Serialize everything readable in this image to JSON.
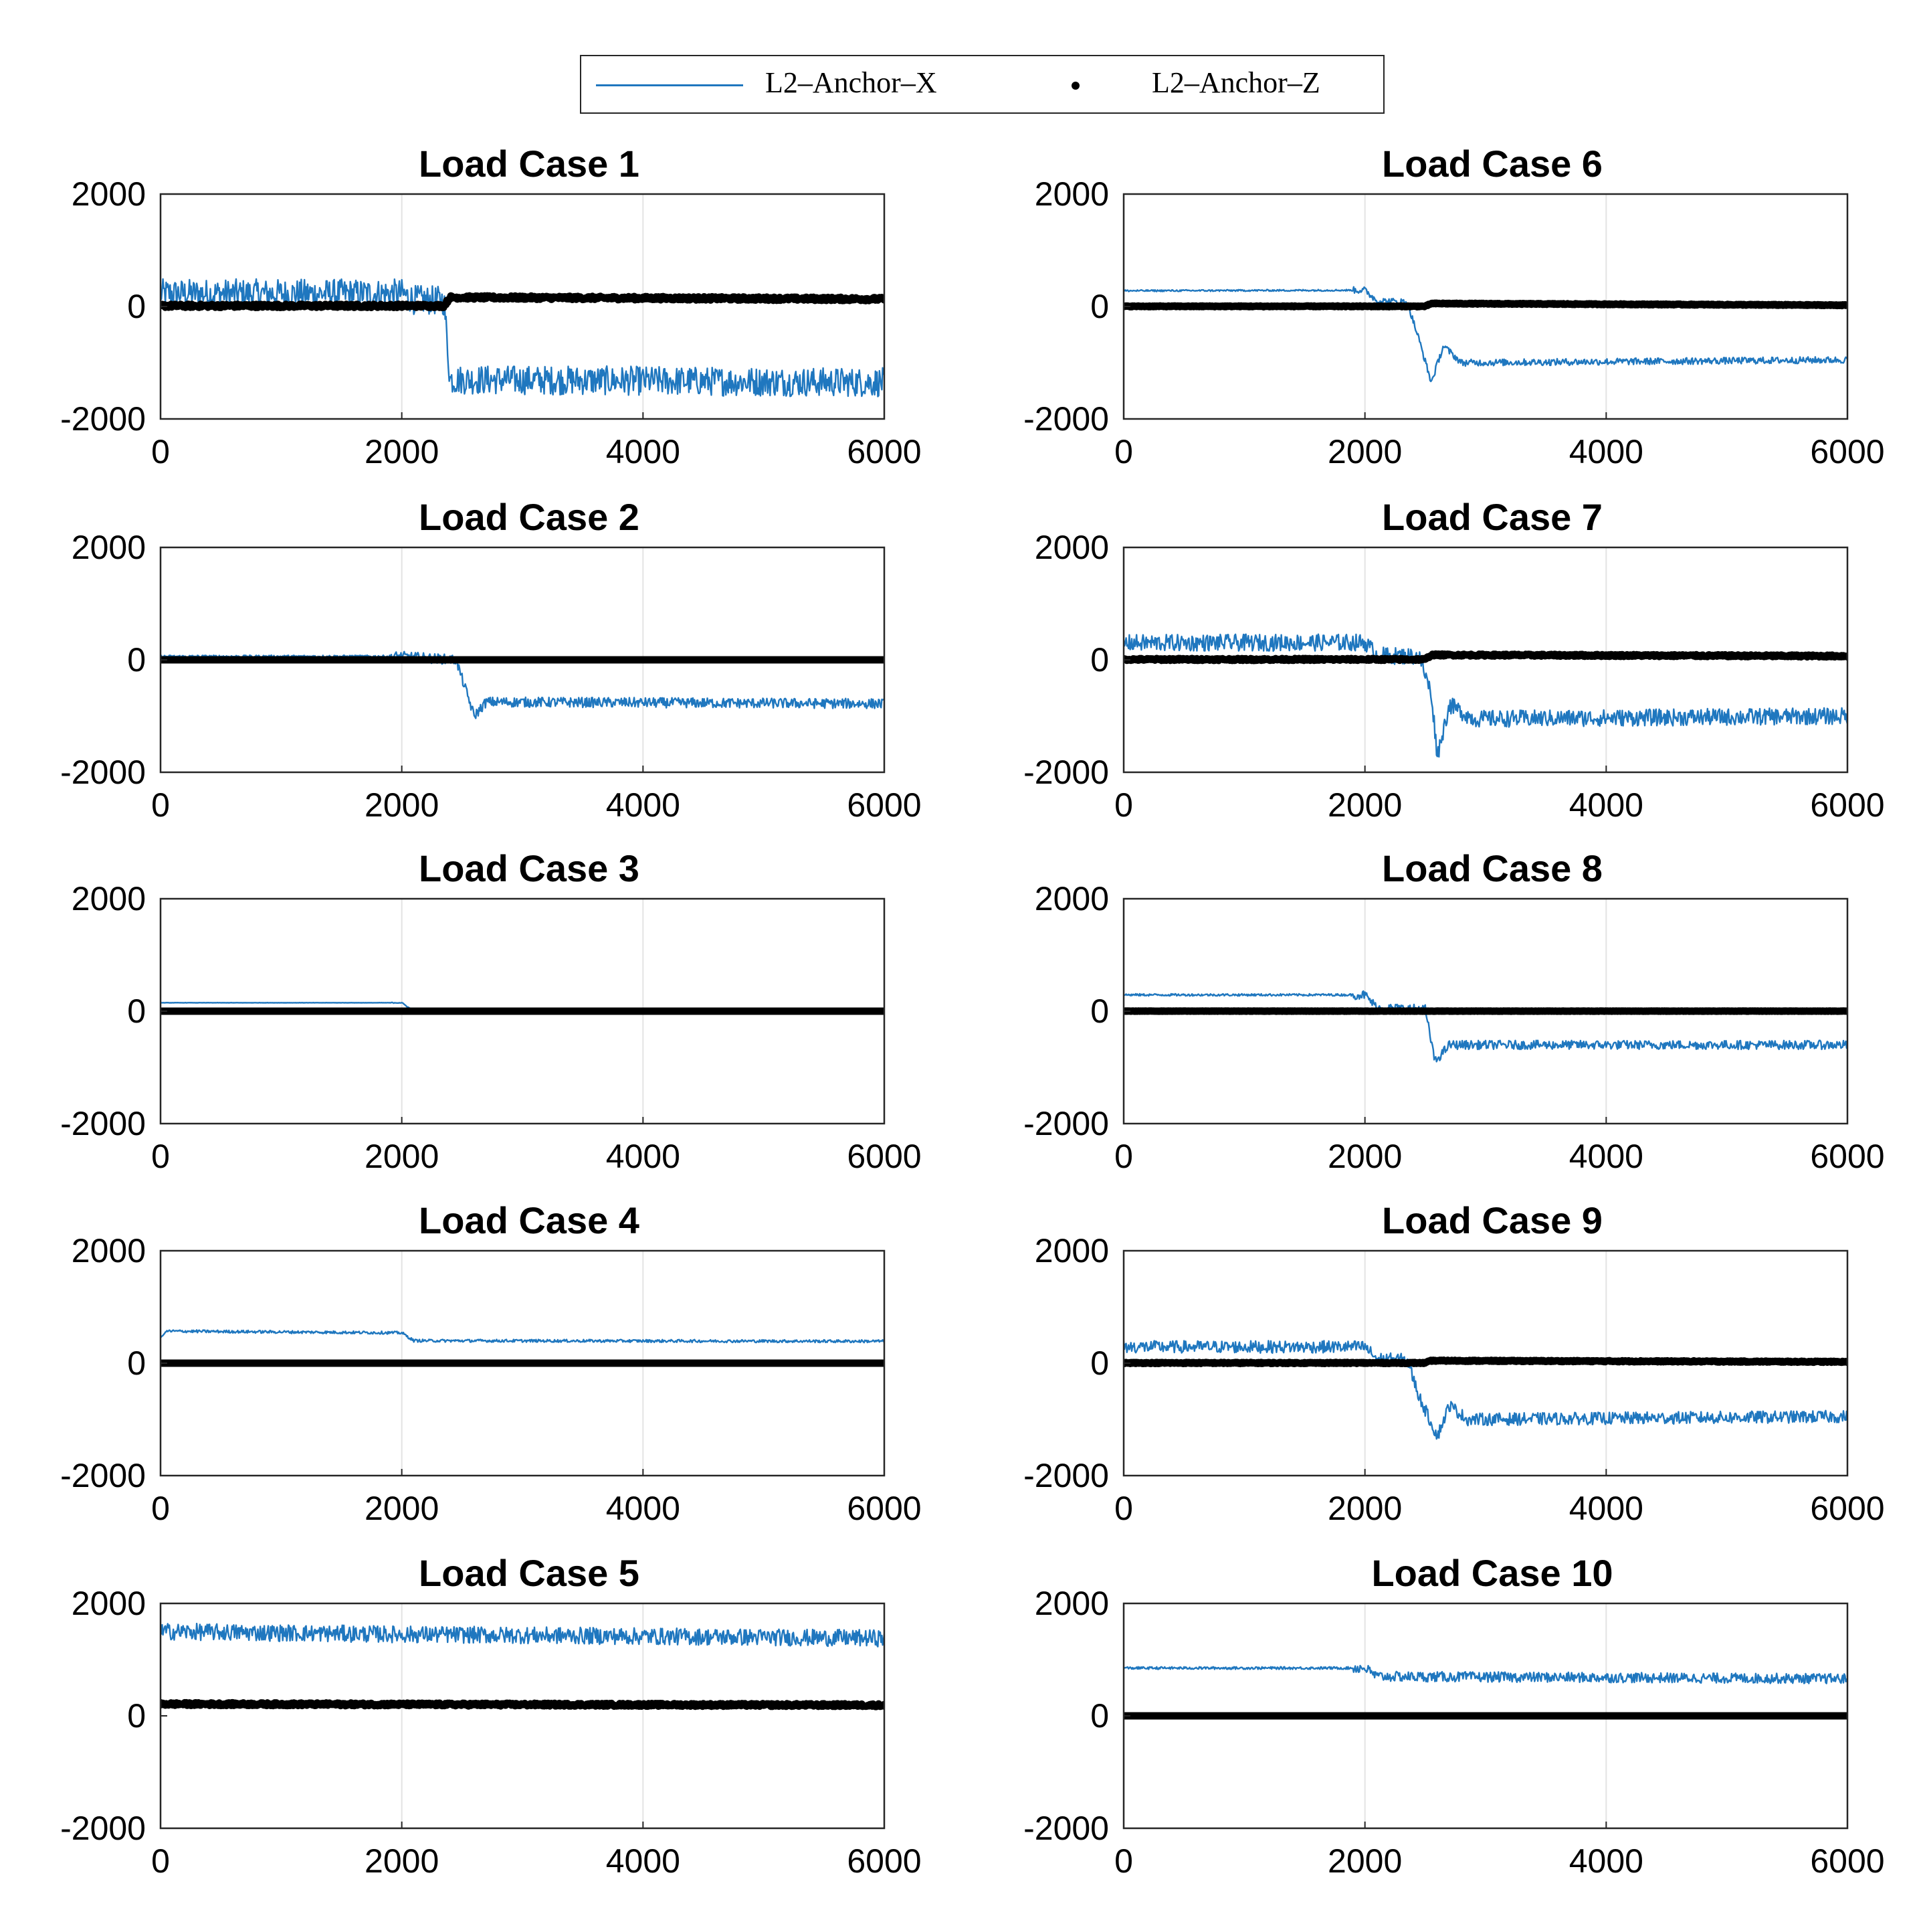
{
  "legend": {
    "series1_label": "L2–Anchor–X",
    "series2_label": "L2–Anchor–Z"
  },
  "colors": {
    "series1": "#1f77bf",
    "series2": "#000000",
    "grid": "#e3e3e3",
    "axis": "#262626"
  },
  "chart_data": [
    {
      "type": "line",
      "title": "Load Case 1",
      "xlim": [
        0,
        6000
      ],
      "ylim": [
        -2000,
        2000
      ],
      "xticks": [
        "0",
        "2000",
        "4000",
        "6000"
      ],
      "yticks": [
        "2000",
        "0",
        "-2000"
      ],
      "grid": "x-only",
      "series": [
        {
          "name": "L2–Anchor–X",
          "style": "line",
          "x": [
            0,
            2000,
            2100,
            2350,
            2400,
            6000
          ],
          "values": [
            230,
            230,
            120,
            100,
            -1300,
            -1350
          ],
          "noise": 260,
          "clip_low": -2000
        },
        {
          "name": "L2–Anchor–Z",
          "style": "points",
          "x": [
            0,
            2350,
            2400,
            6000
          ],
          "values": [
            0,
            0,
            150,
            120
          ],
          "noise": 60
        }
      ]
    },
    {
      "type": "line",
      "title": "Load Case 2",
      "xlim": [
        0,
        6000
      ],
      "ylim": [
        -2000,
        2000
      ],
      "xticks": [
        "0",
        "2000",
        "4000",
        "6000"
      ],
      "yticks": [
        "2000",
        "0",
        "-2000"
      ],
      "grid": "x-only",
      "series": [
        {
          "name": "L2–Anchor–X",
          "style": "line",
          "x": [
            0,
            2000,
            2450,
            2600,
            2700,
            6000
          ],
          "values": [
            60,
            60,
            0,
            -1000,
            -750,
            -780
          ],
          "noise": 90
        },
        {
          "name": "L2–Anchor–Z",
          "style": "points",
          "x": [
            0,
            6000
          ],
          "values": [
            0,
            0
          ],
          "noise": 0
        }
      ]
    },
    {
      "type": "line",
      "title": "Load Case 3",
      "xlim": [
        0,
        6000
      ],
      "ylim": [
        -2000,
        2000
      ],
      "xticks": [
        "0",
        "2000",
        "4000",
        "6000"
      ],
      "yticks": [
        "2000",
        "0",
        "-2000"
      ],
      "grid": "x-only",
      "series": [
        {
          "name": "L2–Anchor–X",
          "style": "line",
          "x": [
            0,
            2000,
            2100,
            6000
          ],
          "values": [
            150,
            150,
            0,
            0
          ],
          "noise": 8
        },
        {
          "name": "L2–Anchor–Z",
          "style": "points",
          "x": [
            0,
            6000
          ],
          "values": [
            0,
            0
          ],
          "noise": 0
        }
      ]
    },
    {
      "type": "line",
      "title": "Load Case 4",
      "xlim": [
        0,
        6000
      ],
      "ylim": [
        -2000,
        2000
      ],
      "xticks": [
        "0",
        "2000",
        "4000",
        "6000"
      ],
      "yticks": [
        "2000",
        "0",
        "-2000"
      ],
      "grid": "x-only",
      "series": [
        {
          "name": "L2–Anchor–X",
          "style": "line",
          "x": [
            0,
            50,
            2000,
            2100,
            6000
          ],
          "values": [
            450,
            570,
            540,
            400,
            390
          ],
          "noise": 25
        },
        {
          "name": "L2–Anchor–Z",
          "style": "points",
          "x": [
            0,
            6000
          ],
          "values": [
            0,
            0
          ],
          "noise": 0
        }
      ]
    },
    {
      "type": "line",
      "title": "Load Case 5",
      "xlim": [
        0,
        6000
      ],
      "ylim": [
        -2000,
        2000
      ],
      "xticks": [
        "0",
        "2000",
        "4000",
        "6000"
      ],
      "yticks": [
        "2000",
        "0",
        "-2000"
      ],
      "grid": "x-only",
      "series": [
        {
          "name": "L2–Anchor–X",
          "style": "line",
          "x": [
            0,
            2000,
            6000
          ],
          "values": [
            1500,
            1450,
            1380
          ],
          "noise": 150,
          "clip_high": 2000
        },
        {
          "name": "L2–Anchor–Z",
          "style": "points",
          "x": [
            0,
            6000
          ],
          "values": [
            200,
            180
          ],
          "noise": 50
        }
      ]
    },
    {
      "type": "line",
      "title": "Load Case 6",
      "xlim": [
        0,
        6000
      ],
      "ylim": [
        -2000,
        2000
      ],
      "xticks": [
        "0",
        "2000",
        "4000",
        "6000"
      ],
      "yticks": [
        "2000",
        "0",
        "-2000"
      ],
      "grid": "x-only",
      "series": [
        {
          "name": "L2–Anchor–X",
          "style": "line",
          "x": [
            0,
            2000,
            2100,
            2350,
            2450,
            2550,
            2650,
            2800,
            6000
          ],
          "values": [
            280,
            290,
            100,
            80,
            -600,
            -1350,
            -700,
            -1000,
            -950
          ],
          "noise": 60
        },
        {
          "name": "L2–Anchor–Z",
          "style": "points",
          "x": [
            0,
            2500,
            2550,
            6000
          ],
          "values": [
            0,
            0,
            50,
            20
          ],
          "noise": 15
        }
      ]
    },
    {
      "type": "line",
      "title": "Load Case 7",
      "xlim": [
        0,
        6000
      ],
      "ylim": [
        -2000,
        2000
      ],
      "xticks": [
        "0",
        "2000",
        "4000",
        "6000"
      ],
      "yticks": [
        "2000",
        "0",
        "-2000"
      ],
      "grid": "x-only",
      "series": [
        {
          "name": "L2–Anchor–X",
          "style": "line",
          "x": [
            0,
            2000,
            2100,
            2450,
            2550,
            2600,
            2700,
            2900,
            6000
          ],
          "values": [
            300,
            310,
            80,
            60,
            -600,
            -1700,
            -800,
            -1050,
            -1000
          ],
          "noise": 150
        },
        {
          "name": "L2–Anchor–Z",
          "style": "points",
          "x": [
            0,
            2500,
            2550,
            6000
          ],
          "values": [
            0,
            0,
            80,
            60
          ],
          "noise": 35
        }
      ]
    },
    {
      "type": "line",
      "title": "Load Case 8",
      "xlim": [
        0,
        6000
      ],
      "ylim": [
        -2000,
        2000
      ],
      "xticks": [
        "0",
        "2000",
        "4000",
        "6000"
      ],
      "yticks": [
        "2000",
        "0",
        "-2000"
      ],
      "grid": "x-only",
      "series": [
        {
          "name": "L2–Anchor–X",
          "style": "line",
          "x": [
            0,
            2000,
            2100,
            2500,
            2580,
            2700,
            6000
          ],
          "values": [
            290,
            290,
            60,
            40,
            -900,
            -600,
            -600
          ],
          "noise": 80
        },
        {
          "name": "L2–Anchor–Z",
          "style": "points",
          "x": [
            0,
            6000
          ],
          "values": [
            0,
            0
          ],
          "noise": 5
        }
      ]
    },
    {
      "type": "line",
      "title": "Load Case 9",
      "xlim": [
        0,
        6000
      ],
      "ylim": [
        -2000,
        2000
      ],
      "xticks": [
        "0",
        "2000",
        "4000",
        "6000"
      ],
      "yticks": [
        "2000",
        "0",
        "-2000"
      ],
      "grid": "x-only",
      "series": [
        {
          "name": "L2–Anchor–X",
          "style": "line",
          "x": [
            0,
            2000,
            2100,
            2350,
            2450,
            2600,
            2700,
            2850,
            6000
          ],
          "values": [
            290,
            290,
            80,
            60,
            -600,
            -1300,
            -750,
            -1000,
            -950
          ],
          "noise": 110
        },
        {
          "name": "L2–Anchor–Z",
          "style": "points",
          "x": [
            0,
            2500,
            2550,
            6000
          ],
          "values": [
            0,
            0,
            40,
            20
          ],
          "noise": 20
        }
      ]
    },
    {
      "type": "line",
      "title": "Load Case 10",
      "xlim": [
        0,
        6000
      ],
      "ylim": [
        -2000,
        2000
      ],
      "xticks": [
        "0",
        "2000",
        "4000",
        "6000"
      ],
      "yticks": [
        "2000",
        "0",
        "-2000"
      ],
      "grid": "x-only",
      "series": [
        {
          "name": "L2–Anchor–X",
          "style": "line",
          "x": [
            0,
            2000,
            2100,
            6000
          ],
          "values": [
            850,
            850,
            700,
            660
          ],
          "noise": 90
        },
        {
          "name": "L2–Anchor–Z",
          "style": "points",
          "x": [
            0,
            6000
          ],
          "values": [
            0,
            0
          ],
          "noise": 0
        }
      ]
    }
  ]
}
